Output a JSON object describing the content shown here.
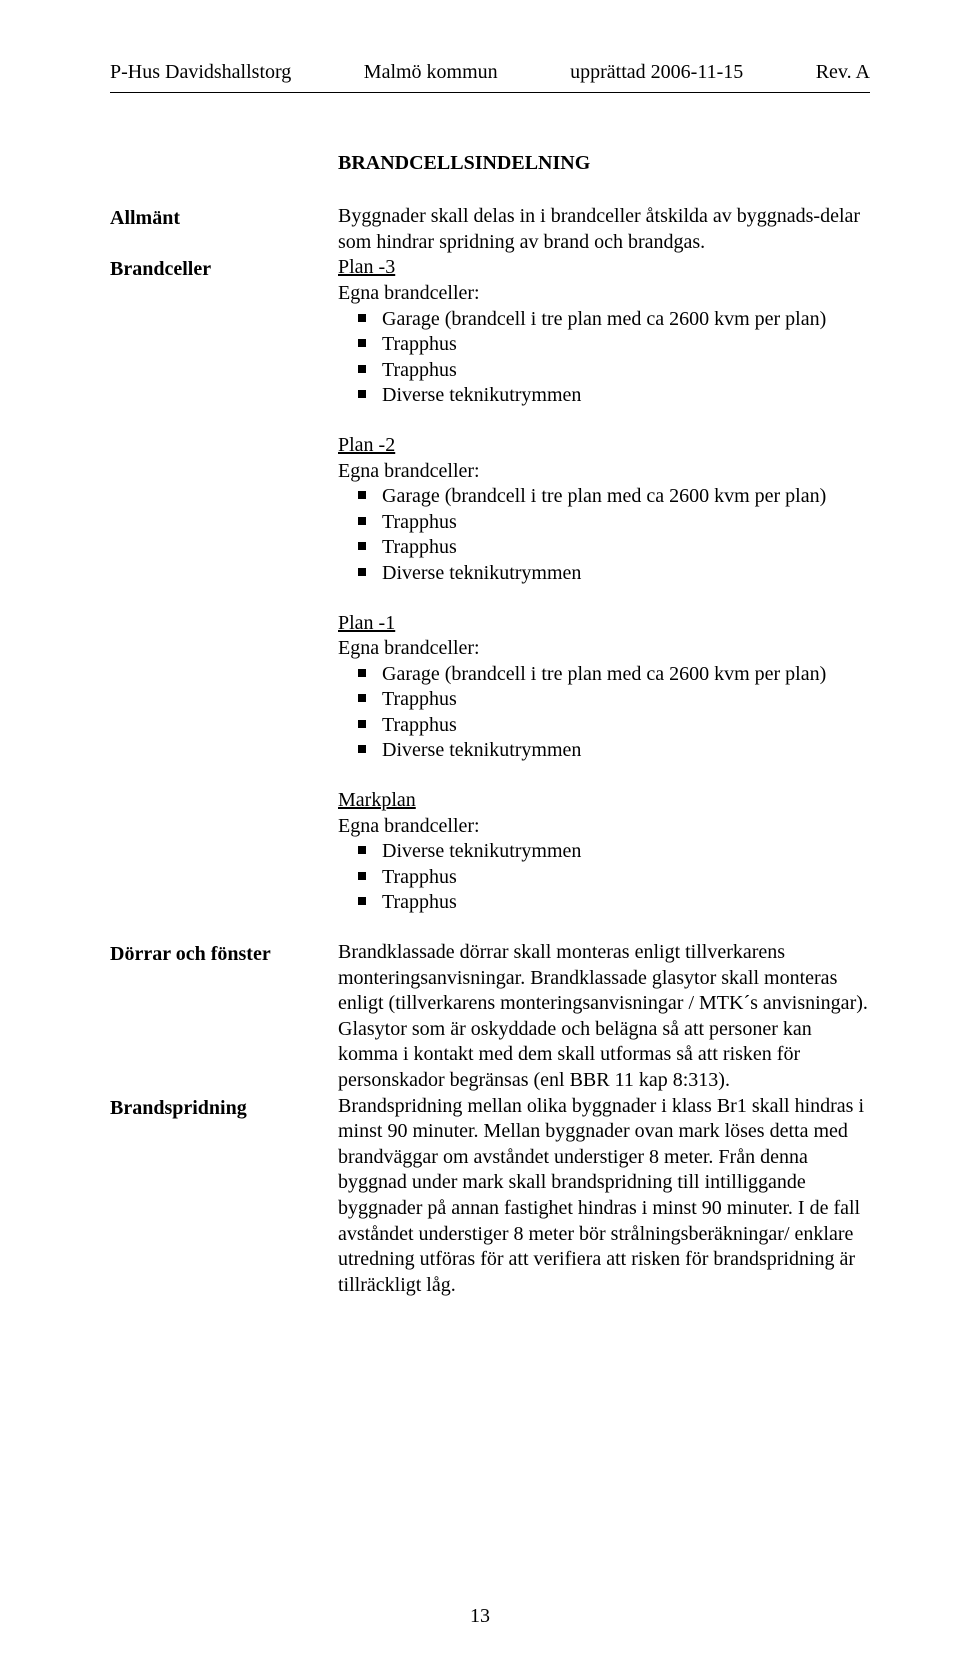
{
  "header": {
    "left": "P-Hus Davidshallstorg",
    "center": "Malmö kommun",
    "date": "upprättad 2006-11-15",
    "rev": "Rev. A"
  },
  "section_title": "BRANDCELLSINDELNING",
  "rows": {
    "allmant": {
      "label": "Allmänt",
      "text": "Byggnader skall delas in i brandceller åtskilda av byggnads-delar som hindrar spridning av brand och brandgas."
    },
    "brandceller": {
      "label": "Brandceller",
      "plans": [
        {
          "title": "Plan -3",
          "sub": "Egna brandceller:",
          "items": [
            "Garage (brandcell i tre plan med ca 2600 kvm per plan)",
            "Trapphus",
            "Trapphus",
            "Diverse teknikutrymmen"
          ]
        },
        {
          "title": "Plan -2",
          "sub": "Egna brandceller:",
          "items": [
            "Garage (brandcell i tre plan med ca 2600 kvm per plan)",
            "Trapphus",
            "Trapphus",
            "Diverse teknikutrymmen"
          ]
        },
        {
          "title": "Plan -1",
          "sub": "Egna brandceller:",
          "items": [
            "Garage (brandcell i tre plan med ca 2600 kvm per plan)",
            "Trapphus",
            "Trapphus",
            "Diverse teknikutrymmen"
          ]
        },
        {
          "title": "Markplan",
          "sub": "Egna brandceller:",
          "items": [
            "Diverse teknikutrymmen",
            "Trapphus",
            "Trapphus"
          ]
        }
      ]
    },
    "dorrar": {
      "label": "Dörrar och fönster",
      "text": "Brandklassade dörrar skall monteras enligt tillverkarens monteringsanvisningar. Brandklassade glasytor skall monteras enligt (tillverkarens monteringsanvisningar / MTK´s anvisningar). Glasytor som är oskyddade och belägna så att personer kan komma i kontakt med dem skall utformas så att risken för personskador begränsas (enl BBR 11 kap 8:313)."
    },
    "brandspridning": {
      "label": "Brandspridning",
      "text": "Brandspridning mellan olika byggnader i klass Br1 skall hindras i minst 90 minuter. Mellan byggnader ovan mark löses detta med brandväggar om avståndet understiger 8 meter. Från denna byggnad under mark skall brandspridning till intilliggande byggnader på annan fastighet hindras i minst 90 minuter. I de fall avståndet understiger 8 meter bör strålningsberäkningar/ enklare utredning utföras för att verifiera att risken för brandspridning är tillräckligt låg."
    }
  },
  "page_number": "13"
}
